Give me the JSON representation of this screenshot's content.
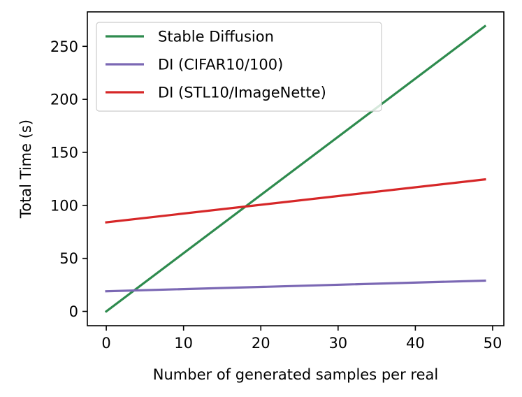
{
  "chart_data": {
    "type": "line",
    "title": "",
    "xlabel": "Number of generated samples per real",
    "ylabel": "Total Time (s)",
    "xlim": [
      -2.45,
      51.45
    ],
    "ylim": [
      -13.5,
      282.5
    ],
    "xticks": [
      0,
      10,
      20,
      30,
      40,
      50
    ],
    "yticks": [
      0,
      50,
      100,
      150,
      200,
      250
    ],
    "grid": false,
    "legend_position": "top-left",
    "series": [
      {
        "name": "Stable Diffusion",
        "color": "#2e8b4e",
        "x": [
          0,
          49
        ],
        "y": [
          0,
          269
        ]
      },
      {
        "name": "DI (CIFAR10/100)",
        "color": "#7b68b4",
        "x": [
          0,
          49
        ],
        "y": [
          19,
          29
        ]
      },
      {
        "name": "DI (STL10/ImageNette)",
        "color": "#d62728",
        "x": [
          0,
          49
        ],
        "y": [
          84,
          124.5
        ]
      }
    ]
  }
}
